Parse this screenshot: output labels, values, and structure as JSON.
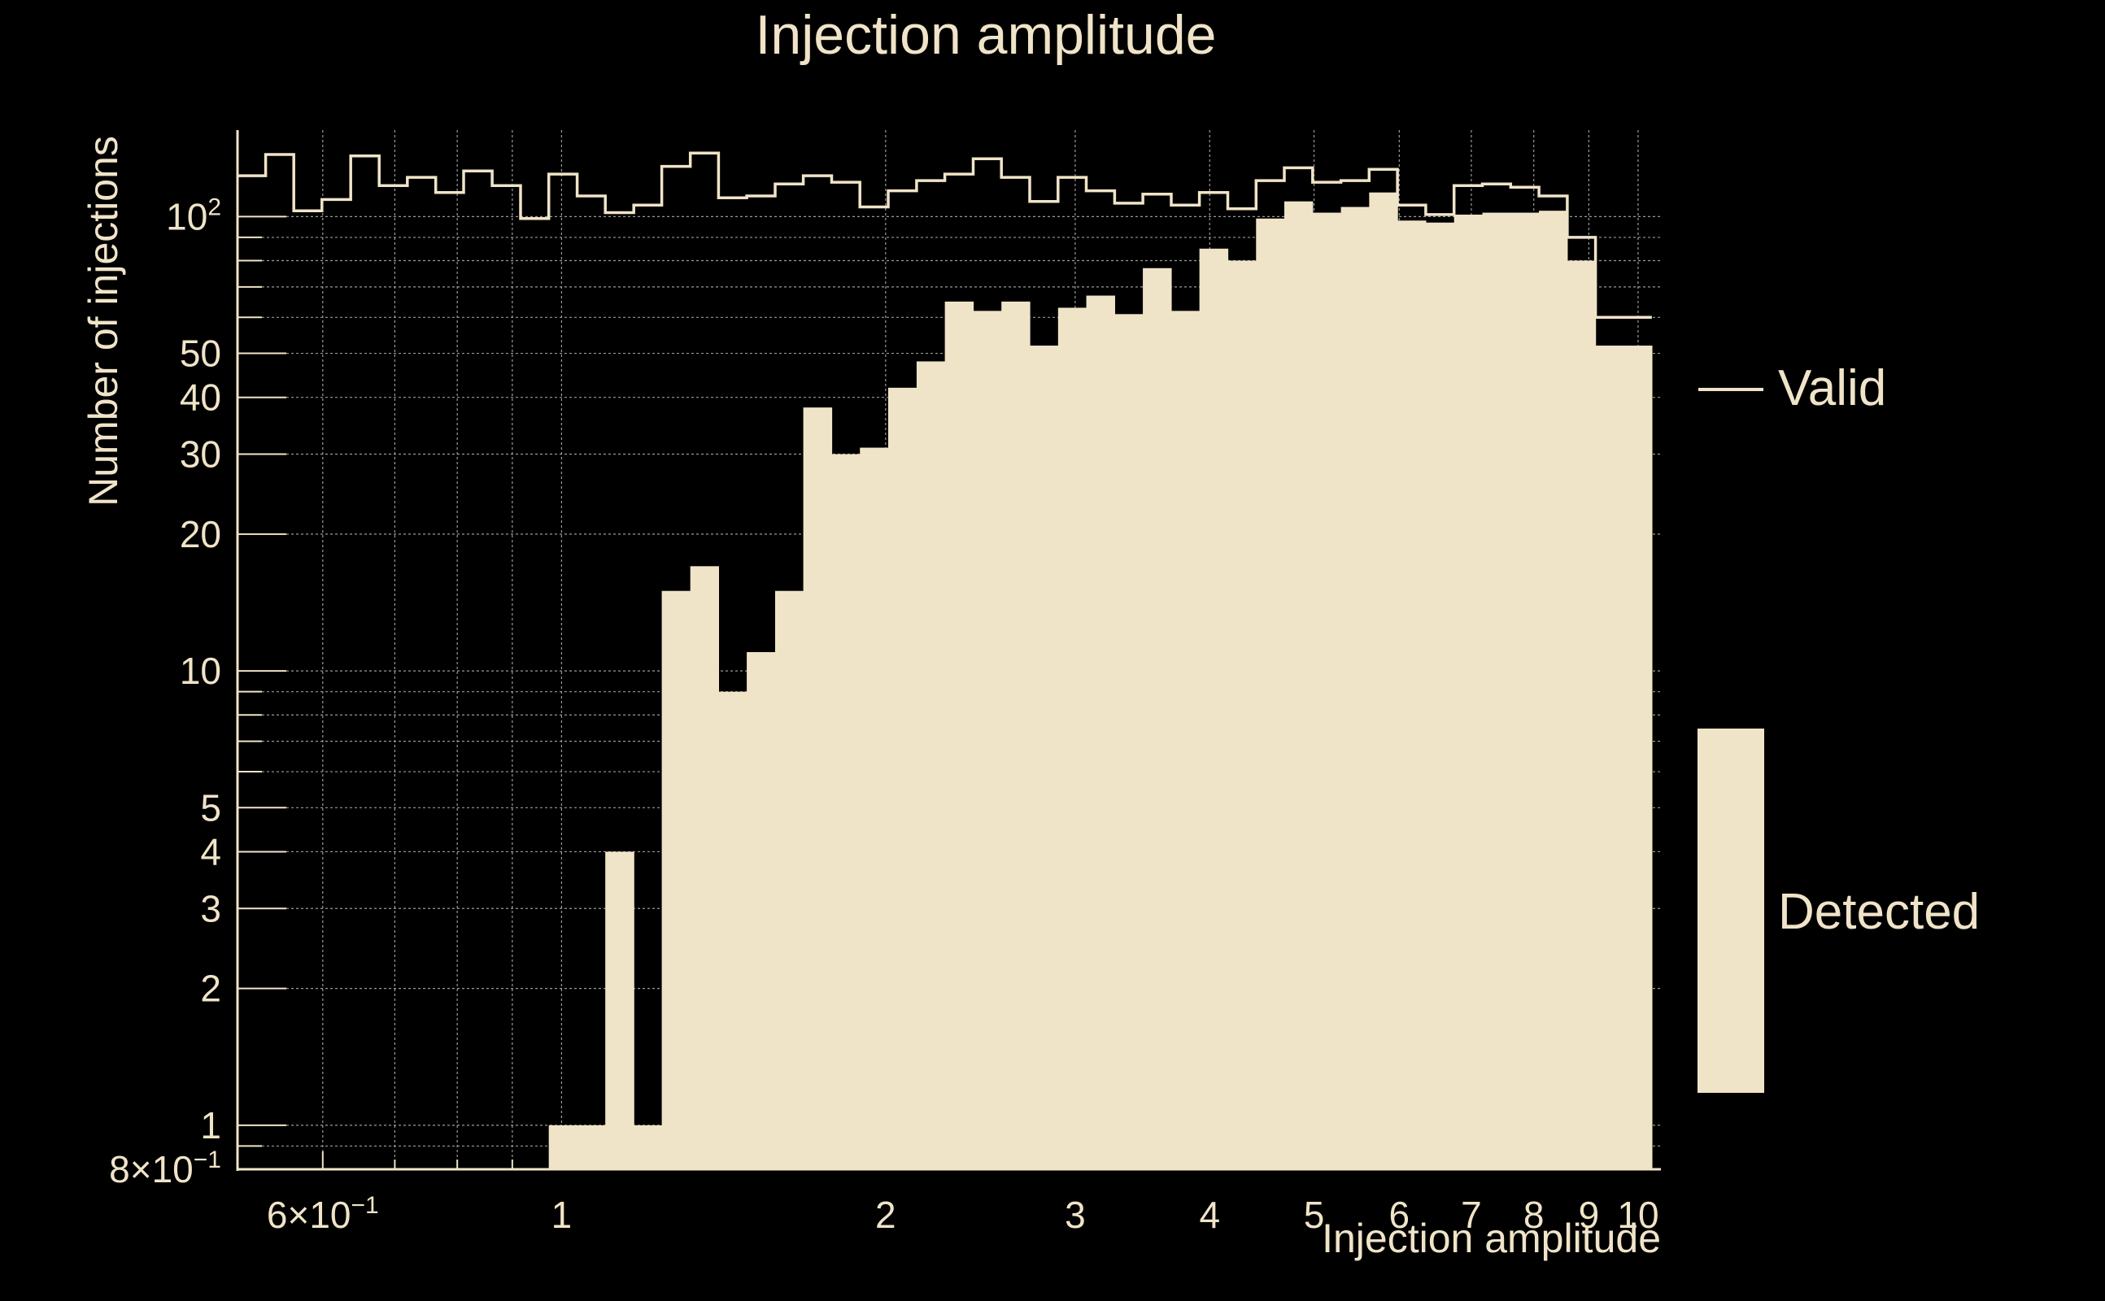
{
  "colors": {
    "background": "#000000",
    "foreground": "#F0E4C8",
    "grid": "#9A9A9A"
  },
  "chart_data": {
    "type": "histogram",
    "title": "Injection amplitude",
    "xlabel": "Injection amplitude",
    "ylabel": "Number of injections",
    "xscale": "log",
    "yscale": "log",
    "xlim": [
      0.5,
      10.5
    ],
    "ylim": [
      0.8,
      155
    ],
    "x_ticks": [
      {
        "value": 0.6,
        "label": "6×10",
        "exp": "−1"
      },
      {
        "value": 1,
        "label": "1"
      },
      {
        "value": 2,
        "label": "2"
      },
      {
        "value": 3,
        "label": "3"
      },
      {
        "value": 4,
        "label": "4"
      },
      {
        "value": 5,
        "label": "5"
      },
      {
        "value": 6,
        "label": "6"
      },
      {
        "value": 7,
        "label": "7"
      },
      {
        "value": 8,
        "label": "8"
      },
      {
        "value": 9,
        "label": "9"
      },
      {
        "value": 10,
        "label": "10"
      }
    ],
    "y_ticks": [
      {
        "value": 0.8,
        "label": "8×10",
        "exp": "−1"
      },
      {
        "value": 1,
        "label": "1"
      },
      {
        "value": 2,
        "label": "2"
      },
      {
        "value": 3,
        "label": "3"
      },
      {
        "value": 4,
        "label": "4"
      },
      {
        "value": 5,
        "label": "5"
      },
      {
        "value": 10,
        "label": "10"
      },
      {
        "value": 20,
        "label": "20"
      },
      {
        "value": 30,
        "label": "30"
      },
      {
        "value": 40,
        "label": "40"
      },
      {
        "value": 50,
        "label": "50"
      },
      {
        "value": 100,
        "label": "10",
        "exp": "2"
      }
    ],
    "bin_edges": [
      0.5,
      0.531,
      0.564,
      0.599,
      0.637,
      0.677,
      0.719,
      0.764,
      0.811,
      0.862,
      0.916,
      0.973,
      1.034,
      1.098,
      1.167,
      1.239,
      1.317,
      1.399,
      1.486,
      1.579,
      1.677,
      1.782,
      1.893,
      2.011,
      2.137,
      2.27,
      2.412,
      2.562,
      2.722,
      2.892,
      3.072,
      3.264,
      3.467,
      3.684,
      3.913,
      4.158,
      4.417,
      4.692,
      4.985,
      5.296,
      5.626,
      5.977,
      6.35,
      6.746,
      7.167,
      7.614,
      8.089,
      8.594,
      9.13,
      9.699,
      10.3
    ],
    "series": [
      {
        "name": "Valid",
        "style": "step",
        "values": [
          123,
          137,
          103,
          109,
          136,
          117,
          122,
          113,
          126,
          117,
          99,
          124,
          111,
          102,
          106,
          129,
          138,
          110,
          111,
          118,
          123,
          119,
          105,
          114,
          120,
          124,
          134,
          122,
          108,
          122,
          114,
          107,
          112,
          106,
          113,
          104,
          120,
          128,
          119,
          120,
          127,
          106,
          101,
          117,
          118,
          116,
          111,
          90,
          60,
          60
        ]
      },
      {
        "name": "Detected",
        "style": "filled",
        "values": [
          0,
          0,
          0,
          0,
          0,
          0,
          0,
          0,
          0,
          0,
          0,
          1,
          1,
          4,
          1,
          15,
          17,
          9,
          11,
          15,
          38,
          30,
          31,
          42,
          48,
          65,
          62,
          65,
          52,
          63,
          67,
          61,
          77,
          62,
          85,
          80,
          99,
          108,
          102,
          105,
          113,
          98,
          97,
          101,
          102,
          102,
          103,
          80,
          52,
          52
        ]
      }
    ],
    "legend": {
      "placement": "right",
      "entries": [
        "Valid",
        "Detected"
      ]
    }
  }
}
